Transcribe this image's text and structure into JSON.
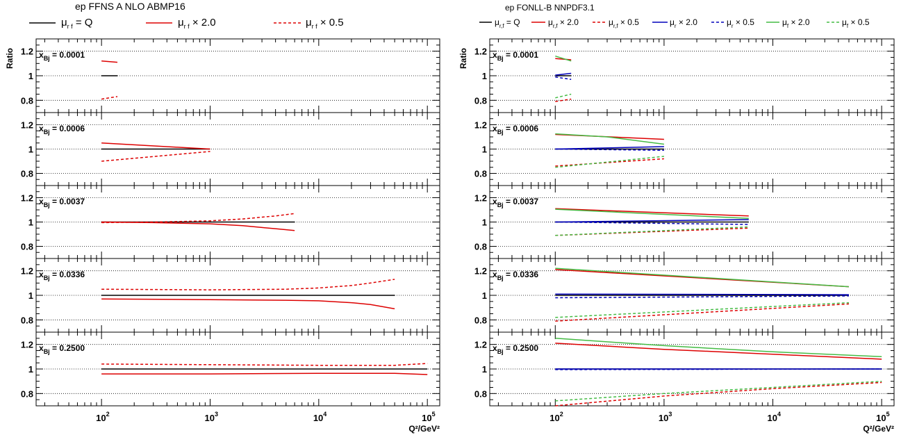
{
  "chart_data": [
    {
      "type": "line",
      "title": "ep FFNS A NLO ABMP16",
      "xlabel": "Q²/GeV²",
      "ylabel": "Ratio",
      "x_scale": "log",
      "xlim": [
        25,
        130000
      ],
      "ylim": [
        0.7,
        1.3
      ],
      "grid": "dotted horizontal at 0.8, 1.0, 1.2",
      "x_ticks": [
        100,
        1000,
        10000,
        100000
      ],
      "x_tick_labels": [
        {
          "base": "10",
          "exp": "2"
        },
        {
          "base": "10",
          "exp": "3"
        },
        {
          "base": "10",
          "exp": "4"
        },
        {
          "base": "10",
          "exp": "5"
        }
      ],
      "y_ticks": [
        0.8,
        1,
        1.2
      ],
      "y_tick_labels": [
        "0.8",
        "1",
        "1.2"
      ],
      "legend": [
        {
          "sym": "μ",
          "sub": "r f",
          "text": "= Q",
          "color": "#000000",
          "dash": "solid"
        },
        {
          "sym": "μ",
          "sub": "r f",
          "text": "× 2.0",
          "color": "#dd0000",
          "dash": "solid"
        },
        {
          "sym": "μ",
          "sub": "r f",
          "text": "× 0.5",
          "color": "#dd0000",
          "dash": "dashed"
        }
      ],
      "panels": [
        {
          "label_x": "x",
          "label_sub": "Bj",
          "label_value": "= 0.0001",
          "series": [
            {
              "style": 0,
              "x": [
                100,
                140
              ],
              "y": [
                1.0,
                1.0
              ]
            },
            {
              "style": 1,
              "x": [
                100,
                140
              ],
              "y": [
                1.12,
                1.11
              ]
            },
            {
              "style": 2,
              "x": [
                100,
                140
              ],
              "y": [
                0.81,
                0.83
              ]
            }
          ]
        },
        {
          "label_x": "x",
          "label_sub": "Bj",
          "label_value": "= 0.0006",
          "series": [
            {
              "style": 0,
              "x": [
                100,
                1000
              ],
              "y": [
                1.0,
                1.0
              ]
            },
            {
              "style": 1,
              "x": [
                100,
                1000
              ],
              "y": [
                1.05,
                1.0
              ]
            },
            {
              "style": 2,
              "x": [
                100,
                1000
              ],
              "y": [
                0.9,
                0.98
              ]
            }
          ]
        },
        {
          "label_x": "x",
          "label_sub": "Bj",
          "label_value": "= 0.0037",
          "series": [
            {
              "style": 0,
              "x": [
                100,
                6000
              ],
              "y": [
                1.0,
                1.0
              ]
            },
            {
              "style": 1,
              "x": [
                100,
                300,
                1000,
                2000,
                3000,
                4000,
                6000
              ],
              "y": [
                1.0,
                0.995,
                0.985,
                0.97,
                0.955,
                0.945,
                0.93
              ]
            },
            {
              "style": 2,
              "x": [
                100,
                300,
                1000,
                2000,
                3000,
                4000,
                6000
              ],
              "y": [
                0.995,
                1.0,
                1.01,
                1.025,
                1.04,
                1.05,
                1.07
              ]
            }
          ]
        },
        {
          "label_x": "x",
          "label_sub": "Bj",
          "label_value": "= 0.0336",
          "series": [
            {
              "style": 0,
              "x": [
                100,
                50000
              ],
              "y": [
                1.0,
                1.0
              ]
            },
            {
              "style": 1,
              "x": [
                100,
                1000,
                5000,
                10000,
                20000,
                30000,
                50000
              ],
              "y": [
                0.97,
                0.965,
                0.96,
                0.955,
                0.94,
                0.925,
                0.89
              ]
            },
            {
              "style": 2,
              "x": [
                100,
                1000,
                5000,
                10000,
                20000,
                30000,
                50000
              ],
              "y": [
                1.05,
                1.045,
                1.05,
                1.06,
                1.08,
                1.1,
                1.13
              ]
            }
          ]
        },
        {
          "label_x": "x",
          "label_sub": "Bj",
          "label_value": "= 0.2500",
          "series": [
            {
              "style": 0,
              "x": [
                100,
                100000
              ],
              "y": [
                1.0,
                1.0
              ]
            },
            {
              "style": 1,
              "x": [
                100,
                1000,
                10000,
                50000,
                100000
              ],
              "y": [
                0.96,
                0.96,
                0.965,
                0.965,
                0.955
              ]
            },
            {
              "style": 2,
              "x": [
                100,
                1000,
                10000,
                50000,
                100000
              ],
              "y": [
                1.04,
                1.035,
                1.03,
                1.03,
                1.045
              ]
            }
          ]
        }
      ]
    },
    {
      "type": "line",
      "title": "ep FONLL-B NNPDF3.1",
      "xlabel": "Q²/GeV²",
      "ylabel": "Ratio",
      "x_scale": "log",
      "xlim": [
        25,
        130000
      ],
      "ylim": [
        0.7,
        1.3
      ],
      "grid": "dotted horizontal at 0.8, 1.0, 1.2",
      "x_ticks": [
        100,
        1000,
        10000,
        100000
      ],
      "x_tick_labels": [
        {
          "base": "10",
          "exp": "2"
        },
        {
          "base": "10",
          "exp": "3"
        },
        {
          "base": "10",
          "exp": "4"
        },
        {
          "base": "10",
          "exp": "5"
        }
      ],
      "y_ticks": [
        0.8,
        1,
        1.2
      ],
      "y_tick_labels": [
        "0.8",
        "1",
        "1.2"
      ],
      "legend": [
        {
          "sym": "μ",
          "sub": "r,f",
          "text": "= Q",
          "color": "#000000",
          "dash": "solid"
        },
        {
          "sym": "μ",
          "sub": "r,f",
          "text": "× 2.0",
          "color": "#dd0000",
          "dash": "solid"
        },
        {
          "sym": "μ",
          "sub": "r,f",
          "text": "× 0.5",
          "color": "#dd0000",
          "dash": "dashed"
        },
        {
          "sym": "μ",
          "sub": "r",
          "text": "× 2.0",
          "color": "#0000bb",
          "dash": "solid"
        },
        {
          "sym": "μ",
          "sub": "r",
          "text": "× 0.5",
          "color": "#0000bb",
          "dash": "dashed"
        },
        {
          "sym": "μ",
          "sub": "f",
          "text": "× 2.0",
          "color": "#44bb44",
          "dash": "solid"
        },
        {
          "sym": "μ",
          "sub": "f",
          "text": "× 0.5",
          "color": "#44bb44",
          "dash": "dashed"
        }
      ],
      "panels": [
        {
          "label_x": "x",
          "label_sub": "Bj",
          "label_value": "= 0.0001",
          "series": [
            {
              "style": 0,
              "x": [
                100,
                140
              ],
              "y": [
                1.0,
                1.0
              ]
            },
            {
              "style": 1,
              "x": [
                100,
                140
              ],
              "y": [
                1.14,
                1.13
              ]
            },
            {
              "style": 2,
              "x": [
                100,
                140
              ],
              "y": [
                0.79,
                0.81
              ]
            },
            {
              "style": 3,
              "x": [
                100,
                140
              ],
              "y": [
                1.005,
                1.02
              ]
            },
            {
              "style": 4,
              "x": [
                100,
                140
              ],
              "y": [
                0.99,
                0.97
              ]
            },
            {
              "style": 5,
              "x": [
                100,
                140
              ],
              "y": [
                1.16,
                1.12
              ]
            },
            {
              "style": 6,
              "x": [
                100,
                140
              ],
              "y": [
                0.82,
                0.85
              ]
            }
          ]
        },
        {
          "label_x": "x",
          "label_sub": "Bj",
          "label_value": "= 0.0006",
          "series": [
            {
              "style": 0,
              "x": [
                100,
                1000
              ],
              "y": [
                1.0,
                1.0
              ]
            },
            {
              "style": 1,
              "x": [
                100,
                1000
              ],
              "y": [
                1.12,
                1.08
              ]
            },
            {
              "style": 2,
              "x": [
                100,
                1000
              ],
              "y": [
                0.86,
                0.92
              ]
            },
            {
              "style": 3,
              "x": [
                100,
                1000
              ],
              "y": [
                1.0,
                1.02
              ]
            },
            {
              "style": 4,
              "x": [
                100,
                1000
              ],
              "y": [
                1.0,
                0.99
              ]
            },
            {
              "style": 5,
              "x": [
                100,
                300,
                1000
              ],
              "y": [
                1.125,
                1.1,
                1.04
              ]
            },
            {
              "style": 6,
              "x": [
                100,
                1000
              ],
              "y": [
                0.85,
                0.94
              ]
            }
          ]
        },
        {
          "label_x": "x",
          "label_sub": "Bj",
          "label_value": "= 0.0037",
          "series": [
            {
              "style": 0,
              "x": [
                100,
                6000
              ],
              "y": [
                1.0,
                1.0
              ]
            },
            {
              "style": 1,
              "x": [
                100,
                6000
              ],
              "y": [
                1.11,
                1.05
              ]
            },
            {
              "style": 2,
              "x": [
                100,
                6000
              ],
              "y": [
                0.89,
                0.95
              ]
            },
            {
              "style": 3,
              "x": [
                100,
                6000
              ],
              "y": [
                1.0,
                1.02
              ]
            },
            {
              "style": 4,
              "x": [
                100,
                6000
              ],
              "y": [
                1.0,
                0.98
              ]
            },
            {
              "style": 5,
              "x": [
                100,
                6000
              ],
              "y": [
                1.105,
                1.03
              ]
            },
            {
              "style": 6,
              "x": [
                100,
                6000
              ],
              "y": [
                0.89,
                0.96
              ]
            }
          ]
        },
        {
          "label_x": "x",
          "label_sub": "Bj",
          "label_value": "= 0.0336",
          "series": [
            {
              "style": 0,
              "x": [
                100,
                50000
              ],
              "y": [
                1.0,
                1.0
              ]
            },
            {
              "style": 1,
              "x": [
                100,
                50000
              ],
              "y": [
                1.21,
                1.07
              ]
            },
            {
              "style": 2,
              "x": [
                100,
                50000
              ],
              "y": [
                0.79,
                0.93
              ]
            },
            {
              "style": 3,
              "x": [
                100,
                50000
              ],
              "y": [
                1.01,
                1.005
              ]
            },
            {
              "style": 4,
              "x": [
                100,
                50000
              ],
              "y": [
                0.98,
                0.995
              ]
            },
            {
              "style": 5,
              "x": [
                100,
                50000
              ],
              "y": [
                1.22,
                1.07
              ]
            },
            {
              "style": 6,
              "x": [
                100,
                50000
              ],
              "y": [
                0.82,
                0.94
              ]
            }
          ]
        },
        {
          "label_x": "x",
          "label_sub": "Bj",
          "label_value": "= 0.2500",
          "series": [
            {
              "style": 0,
              "x": [
                100,
                100000
              ],
              "y": [
                1.0,
                1.0
              ]
            },
            {
              "style": 1,
              "x": [
                100,
                1000,
                10000,
                100000
              ],
              "y": [
                1.21,
                1.16,
                1.12,
                1.08
              ]
            },
            {
              "style": 2,
              "x": [
                100,
                1000,
                10000,
                100000
              ],
              "y": [
                0.7,
                0.78,
                0.84,
                0.89
              ]
            },
            {
              "style": 3,
              "x": [
                100,
                100000
              ],
              "y": [
                1.0,
                1.0
              ]
            },
            {
              "style": 4,
              "x": [
                100,
                100000
              ],
              "y": [
                0.995,
                1.0
              ]
            },
            {
              "style": 5,
              "x": [
                100,
                1000,
                10000,
                100000
              ],
              "y": [
                1.25,
                1.19,
                1.14,
                1.1
              ]
            },
            {
              "style": 6,
              "x": [
                100,
                1000,
                10000,
                100000
              ],
              "y": [
                0.74,
                0.8,
                0.85,
                0.9
              ]
            }
          ]
        }
      ]
    }
  ]
}
